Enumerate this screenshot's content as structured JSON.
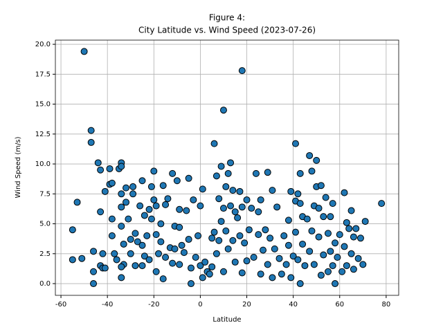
{
  "chart_data": {
    "type": "scatter",
    "title": "Figure 4:",
    "subtitle": "City Latitude vs. Wind Speed (2023-07-26)",
    "x_label": "Latitude",
    "y_label": "Wind Speed (m/s)",
    "color": "#1f77b4",
    "edge_color": "#000000",
    "grid": true,
    "xlim": [
      -62.4,
      85.4
    ],
    "ylim": [
      -0.98,
      20.35
    ],
    "xticks": [
      -60,
      -40,
      -20,
      0,
      20,
      40,
      60,
      80
    ],
    "yticks": [
      {
        "value": 0,
        "label": "0.0"
      },
      {
        "value": 2.5,
        "label": "2.5"
      },
      {
        "value": 5,
        "label": "5.0"
      },
      {
        "value": 7.5,
        "label": "7.5"
      },
      {
        "value": 10,
        "label": "10.0"
      },
      {
        "value": 12.5,
        "label": "12.5"
      },
      {
        "value": 15,
        "label": "15.0"
      },
      {
        "value": 17.5,
        "label": "17.5"
      },
      {
        "value": 20,
        "label": "20.0"
      }
    ],
    "x": [
      -50,
      -55,
      -55,
      -53,
      -51,
      -47,
      -47,
      -46,
      -46,
      -46,
      -44,
      -43,
      -43,
      -43,
      -42,
      -42,
      -41,
      -41,
      -39,
      -39,
      -38,
      -38,
      -38,
      -37,
      -36,
      -35,
      -34,
      -34,
      -34,
      -34,
      -34,
      -33,
      -34,
      -34,
      -33,
      -32,
      -32,
      -31,
      -30,
      -30,
      -29,
      -29,
      -28,
      -28,
      -27,
      -26,
      -25,
      -25,
      -25,
      -24,
      -24,
      -23,
      -22,
      -22,
      -21,
      -21,
      -20,
      -20,
      -19,
      -19,
      -19,
      -18,
      -17,
      -17,
      -16,
      -16,
      -15,
      -15,
      -14,
      -13,
      -12,
      -12,
      -11,
      -11,
      -10,
      -9,
      -9,
      -9,
      -8,
      -7,
      -6,
      -5,
      -5,
      -4,
      -4,
      -3,
      -2,
      -1,
      0,
      0,
      1,
      1,
      2,
      3,
      4,
      5,
      5,
      6,
      6,
      7,
      7,
      8,
      8,
      9,
      9,
      10,
      10,
      10,
      11,
      11,
      12,
      12,
      13,
      13,
      14,
      14,
      15,
      15,
      16,
      17,
      17,
      18,
      18,
      18,
      19,
      20,
      20,
      21,
      22,
      23,
      24,
      25,
      25,
      26,
      26,
      27,
      28,
      29,
      29,
      30,
      31,
      31,
      32,
      33,
      34,
      35,
      36,
      37,
      38,
      38,
      39,
      39,
      40,
      41,
      41,
      41,
      42,
      42,
      43,
      43,
      43,
      44,
      44,
      45,
      46,
      47,
      47,
      48,
      48,
      49,
      49,
      50,
      50,
      51,
      51,
      52,
      52,
      53,
      53,
      54,
      55,
      55,
      56,
      56,
      57,
      57,
      58,
      58,
      59,
      60,
      61,
      62,
      62,
      63,
      63,
      64,
      65,
      65,
      66,
      66,
      67,
      68,
      69,
      70,
      71,
      78
    ],
    "values": [
      19.4,
      4.5,
      2.0,
      6.8,
      2.1,
      12.8,
      11.8,
      2.7,
      1.0,
      0.0,
      10.1,
      9.5,
      6.0,
      1.5,
      2.5,
      1.3,
      7.7,
      1.3,
      9.6,
      8.3,
      8.4,
      5.4,
      4.0,
      2.5,
      2.0,
      9.6,
      10.1,
      9.8,
      7.5,
      6.4,
      4.8,
      1.6,
      1.4,
      0.5,
      3.3,
      8.0,
      6.8,
      5.4,
      3.7,
      2.5,
      8.1,
      7.5,
      4.2,
      1.5,
      3.5,
      6.5,
      8.6,
      3.2,
      1.5,
      2.3,
      5.7,
      4.0,
      6.2,
      2.0,
      8.1,
      5.4,
      9.4,
      7.0,
      6.5,
      4.1,
      1.0,
      2.5,
      5.0,
      3.5,
      8.2,
      0.4,
      6.6,
      2.2,
      7.1,
      3.0,
      9.2,
      1.7,
      4.8,
      2.9,
      8.6,
      6.2,
      4.7,
      1.6,
      3.2,
      2.6,
      6.1,
      8.8,
      3.7,
      1.3,
      0.0,
      7.0,
      2.2,
      4.0,
      6.5,
      1.5,
      7.9,
      0.5,
      1.8,
      1.0,
      0.8,
      3.8,
      1.4,
      11.7,
      4.3,
      9.0,
      2.5,
      7.1,
      3.6,
      9.8,
      5.2,
      14.5,
      6.3,
      1.0,
      8.1,
      4.4,
      9.2,
      2.9,
      10.1,
      6.5,
      7.8,
      3.6,
      6.0,
      1.8,
      5.5,
      7.7,
      4.0,
      17.8,
      6.4,
      0.9,
      3.4,
      7.0,
      1.9,
      4.5,
      6.3,
      2.2,
      9.2,
      6.0,
      4.1,
      7.0,
      0.8,
      2.8,
      4.5,
      9.3,
      1.6,
      3.8,
      7.8,
      0.5,
      2.9,
      6.4,
      2.1,
      0.8,
      4.0,
      1.6,
      5.3,
      3.2,
      7.7,
      0.5,
      2.3,
      11.7,
      6.9,
      4.3,
      7.5,
      2.0,
      9.2,
      6.7,
      0.0,
      5.6,
      3.3,
      1.5,
      5.4,
      10.7,
      2.7,
      9.4,
      4.4,
      6.5,
      1.6,
      10.3,
      8.1,
      6.3,
      3.9,
      8.2,
      0.7,
      5.6,
      2.4,
      7.2,
      4.2,
      1.0,
      5.6,
      2.7,
      1.5,
      6.7,
      0.0,
      3.4,
      2.2,
      4.1,
      1.0,
      7.6,
      3.1,
      5.1,
      1.5,
      4.6,
      6.1,
      2.5,
      3.9,
      1.2,
      4.6,
      2.1,
      3.8,
      1.6,
      5.2,
      6.7
    ]
  }
}
